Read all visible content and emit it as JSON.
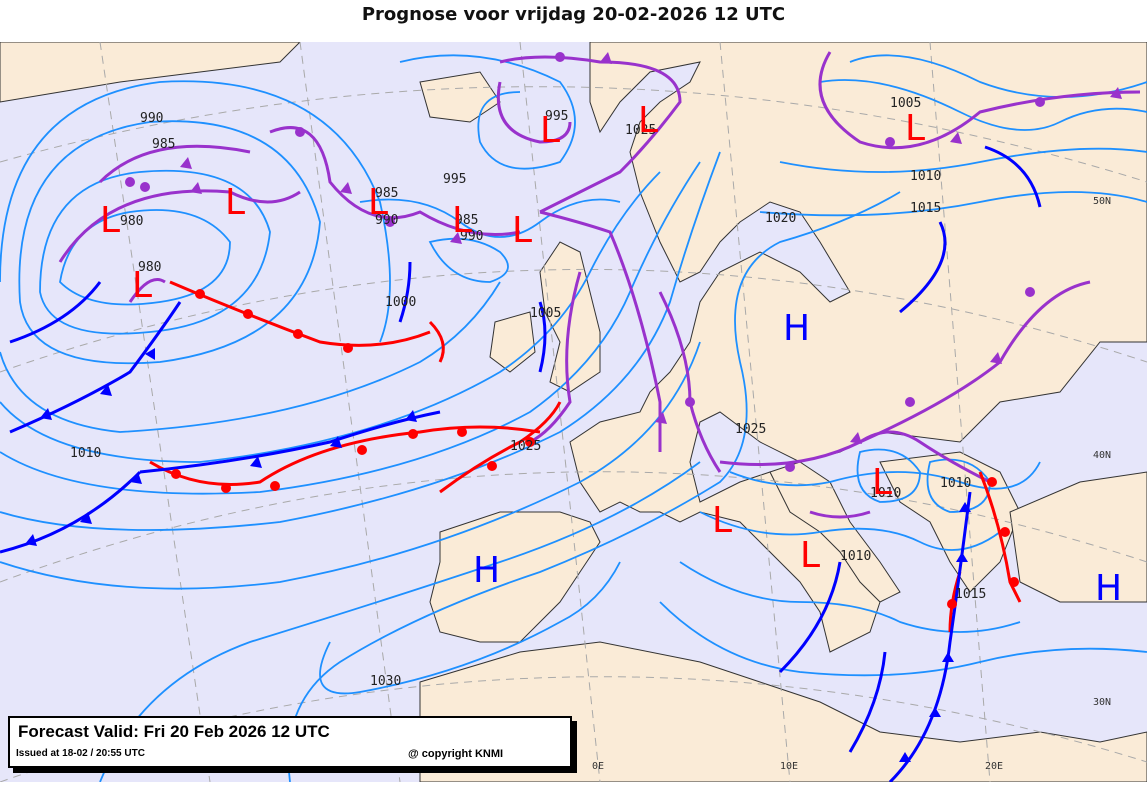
{
  "title": "Prognose voor vrijdag 20-02-2026 12 UTC",
  "legend": {
    "valid": "Forecast Valid:  Fri 20 Feb 2026 12 UTC",
    "issued": "Issued at 18-02 / 20:55 UTC",
    "copyright": "@ copyright KNMI"
  },
  "colors": {
    "sea": "#e6e6fa",
    "land": "#faebd7",
    "isobar": "#1e90ff",
    "cold_front": "#0000ff",
    "warm_front": "#ff0000",
    "occluded_front": "#9932cc",
    "graticule": "#a9a9a9"
  },
  "isobar_labels": [
    "990",
    "985",
    "980",
    "980",
    "995",
    "995",
    "985",
    "990",
    "985",
    "990",
    "1000",
    "1005",
    "1010",
    "1025",
    "1030",
    "1020",
    "1005",
    "1010",
    "1015",
    "1025",
    "1010",
    "1010",
    "1010",
    "1015",
    "1025"
  ],
  "pressure_centers": [
    {
      "type": "L"
    },
    {
      "type": "L"
    },
    {
      "type": "L"
    },
    {
      "type": "L"
    },
    {
      "type": "L"
    },
    {
      "type": "L"
    },
    {
      "type": "L"
    },
    {
      "type": "L"
    },
    {
      "type": "L"
    },
    {
      "type": "L"
    },
    {
      "type": "L"
    },
    {
      "type": "L"
    },
    {
      "type": "H"
    },
    {
      "type": "H"
    },
    {
      "type": "H"
    }
  ],
  "grid_labels": [
    "50N",
    "40N",
    "30N",
    "0E",
    "10E",
    "20E"
  ]
}
